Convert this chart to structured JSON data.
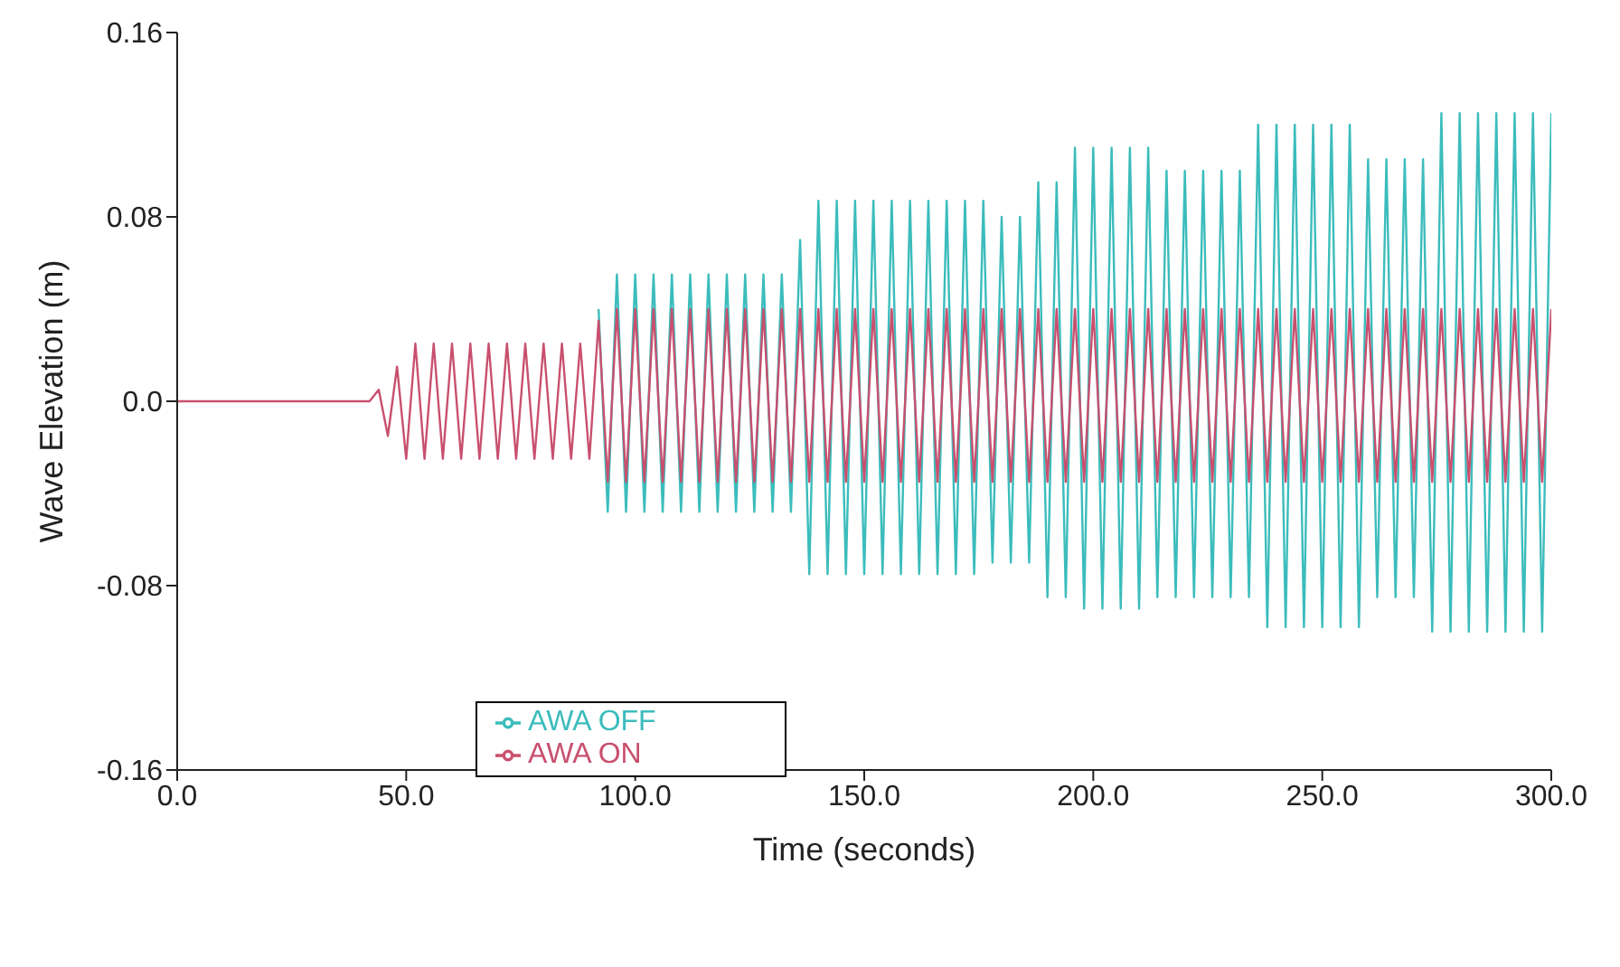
{
  "chart_data": {
    "type": "line",
    "xlabel": "Time (seconds)",
    "ylabel": "Wave Elevation  (m)",
    "x": [
      0,
      42,
      44,
      46,
      48,
      50,
      52,
      54,
      56,
      58,
      60,
      62,
      64,
      66,
      68,
      70,
      72,
      74,
      76,
      78,
      80,
      82,
      84,
      86,
      88,
      90,
      92,
      94,
      96,
      98,
      100,
      102,
      104,
      106,
      108,
      110,
      112,
      114,
      116,
      118,
      120,
      122,
      124,
      126,
      128,
      130,
      132,
      134,
      136,
      138,
      140,
      142,
      144,
      146,
      148,
      150,
      152,
      154,
      156,
      158,
      160,
      162,
      164,
      166,
      168,
      170,
      172,
      174,
      176,
      178,
      180,
      182,
      184,
      186,
      188,
      190,
      192,
      194,
      196,
      198,
      200,
      202,
      204,
      206,
      208,
      210,
      212,
      214,
      216,
      218,
      220,
      222,
      224,
      226,
      228,
      230,
      232,
      234,
      236,
      238,
      240,
      242,
      244,
      246,
      248,
      250,
      252,
      254,
      256,
      258,
      260,
      262,
      264,
      266,
      268,
      270,
      272,
      274,
      276,
      278,
      280,
      282,
      284,
      286,
      288,
      290,
      292,
      294,
      296,
      298,
      300
    ],
    "series": [
      {
        "name": "AWA OFF",
        "color": "#3cbcbc",
        "values": [
          null,
          null,
          null,
          null,
          null,
          null,
          null,
          null,
          null,
          null,
          null,
          null,
          null,
          null,
          null,
          null,
          null,
          null,
          null,
          null,
          null,
          null,
          null,
          null,
          null,
          null,
          0.04,
          -0.048,
          0.055,
          -0.048,
          0.055,
          -0.048,
          0.055,
          -0.048,
          0.055,
          -0.048,
          0.055,
          -0.048,
          0.055,
          -0.048,
          0.055,
          -0.048,
          0.055,
          -0.048,
          0.055,
          -0.048,
          0.055,
          -0.048,
          0.07,
          -0.075,
          0.087,
          -0.075,
          0.087,
          -0.075,
          0.087,
          -0.075,
          0.087,
          -0.075,
          0.087,
          -0.075,
          0.087,
          -0.075,
          0.087,
          -0.075,
          0.087,
          -0.075,
          0.087,
          -0.075,
          0.087,
          -0.07,
          0.08,
          -0.07,
          0.08,
          -0.07,
          0.095,
          -0.085,
          0.095,
          -0.085,
          0.11,
          -0.09,
          0.11,
          -0.09,
          0.11,
          -0.09,
          0.11,
          -0.09,
          0.11,
          -0.085,
          0.1,
          -0.085,
          0.1,
          -0.085,
          0.1,
          -0.085,
          0.1,
          -0.085,
          0.1,
          -0.085,
          0.12,
          -0.098,
          0.12,
          -0.098,
          0.12,
          -0.098,
          0.12,
          -0.098,
          0.12,
          -0.098,
          0.12,
          -0.098,
          0.105,
          -0.085,
          0.105,
          -0.085,
          0.105,
          -0.085,
          0.105,
          -0.1,
          0.125,
          -0.1,
          0.125,
          -0.1,
          0.125,
          -0.1,
          0.125,
          -0.1,
          0.125,
          -0.1,
          0.125,
          -0.1,
          0.125
        ]
      },
      {
        "name": "AWA ON",
        "color": "#c8506e",
        "values": [
          0,
          0,
          0.005,
          -0.015,
          0.015,
          -0.025,
          0.025,
          -0.025,
          0.025,
          -0.025,
          0.025,
          -0.025,
          0.025,
          -0.025,
          0.025,
          -0.025,
          0.025,
          -0.025,
          0.025,
          -0.025,
          0.025,
          -0.025,
          0.025,
          -0.025,
          0.025,
          -0.025,
          0.035,
          -0.035,
          0.04,
          -0.035,
          0.04,
          -0.035,
          0.04,
          -0.035,
          0.04,
          -0.035,
          0.04,
          -0.035,
          0.04,
          -0.035,
          0.04,
          -0.035,
          0.04,
          -0.035,
          0.04,
          -0.035,
          0.04,
          -0.035,
          0.04,
          -0.035,
          0.04,
          -0.035,
          0.04,
          -0.035,
          0.04,
          -0.035,
          0.04,
          -0.035,
          0.04,
          -0.035,
          0.04,
          -0.035,
          0.04,
          -0.035,
          0.04,
          -0.035,
          0.04,
          -0.035,
          0.04,
          -0.035,
          0.04,
          -0.035,
          0.04,
          -0.035,
          0.04,
          -0.035,
          0.04,
          -0.035,
          0.04,
          -0.035,
          0.04,
          -0.035,
          0.04,
          -0.035,
          0.04,
          -0.035,
          0.04,
          -0.035,
          0.04,
          -0.035,
          0.04,
          -0.035,
          0.04,
          -0.035,
          0.04,
          -0.035,
          0.04,
          -0.035,
          0.04,
          -0.035,
          0.04,
          -0.035,
          0.04,
          -0.035,
          0.04,
          -0.035,
          0.04,
          -0.035,
          0.04,
          -0.035,
          0.04,
          -0.035,
          0.04,
          -0.035,
          0.04,
          -0.035,
          0.04,
          -0.035,
          0.04,
          -0.035,
          0.04,
          -0.035,
          0.04,
          -0.035,
          0.04,
          -0.035,
          0.04,
          -0.035,
          0.04,
          -0.035,
          0.04
        ]
      }
    ],
    "xlim": [
      0,
      300
    ],
    "xticks": [
      {
        "value": 0,
        "label": "0.0"
      },
      {
        "value": 50,
        "label": "50.0"
      },
      {
        "value": 100,
        "label": "100.0"
      },
      {
        "value": 150,
        "label": "150.0"
      },
      {
        "value": 200,
        "label": "200.0"
      },
      {
        "value": 250,
        "label": "250.0"
      },
      {
        "value": 300,
        "label": "300.0"
      }
    ],
    "ylim": [
      -0.16,
      0.16
    ],
    "yticks": [
      {
        "value": -0.16,
        "label": "-0.16"
      },
      {
        "value": -0.08,
        "label": "-0.08"
      },
      {
        "value": 0,
        "label": "0.0"
      },
      {
        "value": 0.08,
        "label": "0.08"
      },
      {
        "value": 0.16,
        "label": "0.16"
      }
    ],
    "grid": false,
    "legend": "bottom left",
    "marker": "none",
    "line_style": "solid"
  }
}
